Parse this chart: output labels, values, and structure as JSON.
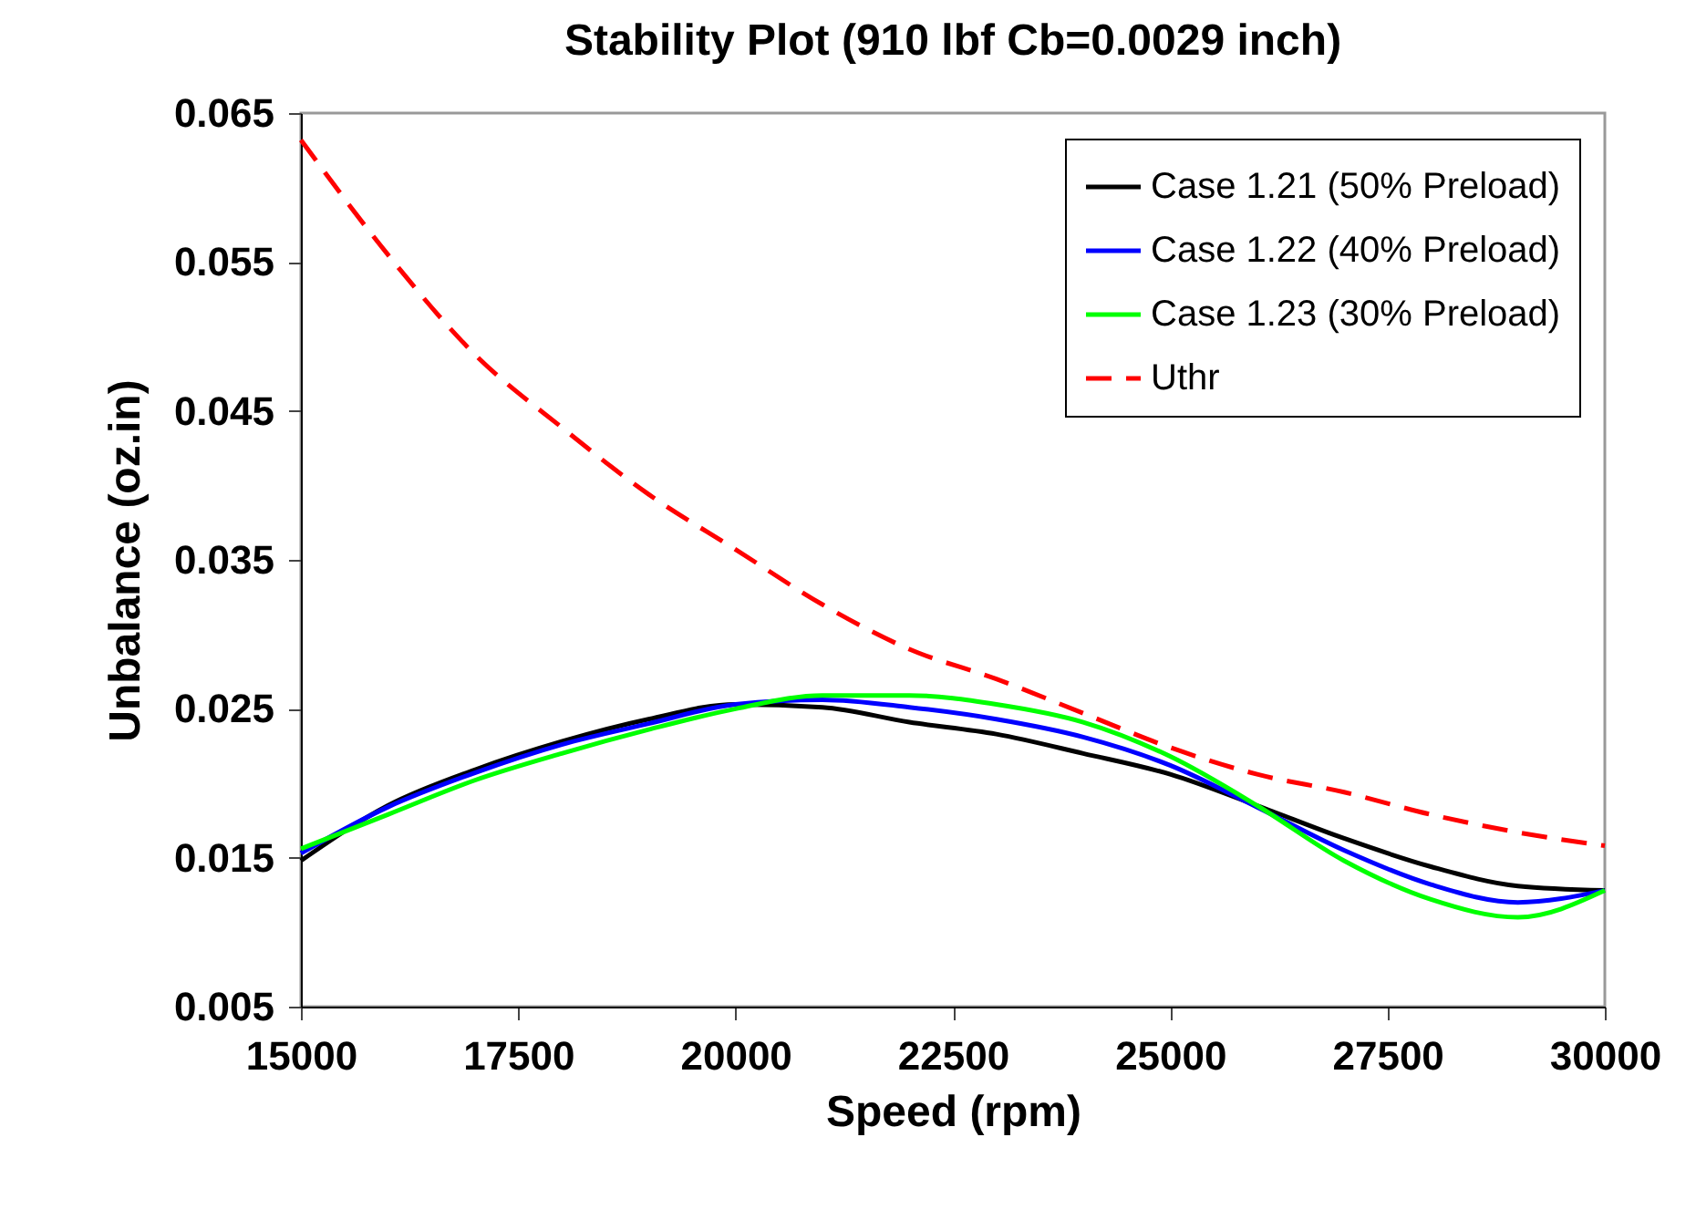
{
  "chart_data": {
    "type": "line",
    "title": "Stability Plot (910 lbf  Cb=0.0029 inch)",
    "xlabel": "Speed (rpm)",
    "ylabel": "Unbalance (oz.in)",
    "x": [
      15000,
      16000,
      17000,
      18000,
      19000,
      20000,
      21000,
      22000,
      23000,
      24000,
      25000,
      26000,
      27000,
      28000,
      29000,
      30000
    ],
    "series": [
      {
        "name": "Case 1.21 (50% Preload)",
        "color": "#000000",
        "line_style": "solid",
        "values": [
          0.0148,
          0.0185,
          0.0209,
          0.0228,
          0.0243,
          0.0253,
          0.0251,
          0.0241,
          0.0233,
          0.022,
          0.0206,
          0.0185,
          0.0163,
          0.0144,
          0.0131,
          0.0128
        ]
      },
      {
        "name": "Case 1.22 (40% Preload)",
        "color": "#0000ff",
        "line_style": "solid",
        "values": [
          0.0153,
          0.0184,
          0.0207,
          0.0226,
          0.024,
          0.0253,
          0.0256,
          0.0251,
          0.0243,
          0.0231,
          0.0212,
          0.0184,
          0.0155,
          0.0132,
          0.012,
          0.0128
        ]
      },
      {
        "name": "Case 1.23 (30% Preload)",
        "color": "#00ff00",
        "line_style": "solid",
        "values": [
          0.0156,
          0.0179,
          0.0202,
          0.022,
          0.0236,
          0.025,
          0.0259,
          0.0259,
          0.0253,
          0.0241,
          0.0218,
          0.0185,
          0.0148,
          0.0122,
          0.011,
          0.0128
        ]
      },
      {
        "name": "Uthr",
        "color": "#ff0000",
        "line_style": "dashed",
        "values": [
          0.0632,
          0.0555,
          0.0488,
          0.0439,
          0.0394,
          0.0357,
          0.032,
          0.029,
          0.027,
          0.0247,
          0.0224,
          0.0206,
          0.0194,
          0.0179,
          0.0167,
          0.0158
        ]
      }
    ],
    "xlim": [
      15000,
      30000
    ],
    "xticks": [
      15000,
      17500,
      20000,
      22500,
      25000,
      27500,
      30000
    ],
    "ylim": [
      0.005,
      0.065
    ],
    "yticks": [
      0.005,
      0.015,
      0.025,
      0.035,
      0.045,
      0.055,
      0.065
    ],
    "grid": false,
    "legend": "top right",
    "marker": "none"
  }
}
